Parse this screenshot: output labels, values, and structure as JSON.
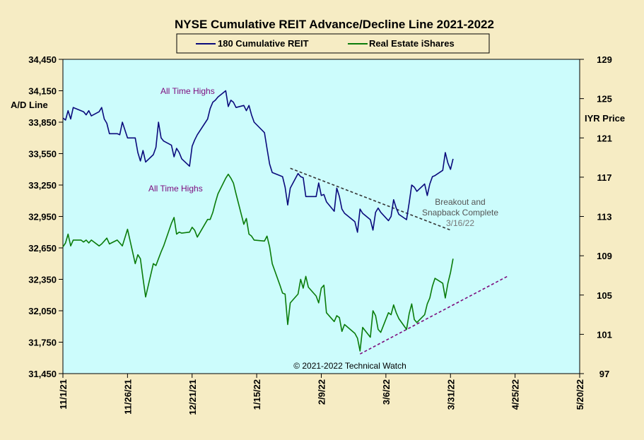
{
  "chart_data": {
    "type": "line",
    "title": "NYSE Cumulative  REIT Advance/Decline  Line 2021-2022",
    "ylabel_left": "A/D Line",
    "ylabel_right": "IYR Price",
    "left_axis": {
      "min": 31450,
      "max": 34450,
      "ticks": [
        "34,450",
        "34,150",
        "33,850",
        "33,550",
        "33,250",
        "32,950",
        "32,650",
        "32,350",
        "32,050",
        "31,750",
        "31,450"
      ]
    },
    "right_axis": {
      "min": 97,
      "max": 129,
      "ticks": [
        "129",
        "125",
        "121",
        "117",
        "113",
        "109",
        "105",
        "101",
        "97"
      ]
    },
    "x_axis": {
      "start": "2021-11-01",
      "end": "2022-05-20",
      "ticks": [
        "11/1/21",
        "11/26/21",
        "12/21/21",
        "1/15/22",
        "2/9/22",
        "3/6/22",
        "3/31/22",
        "4/25/22",
        "5/20/22"
      ]
    },
    "legend": {
      "placement": "top",
      "entries": [
        "180 Cumulative REIT",
        "Real Estate iShares"
      ]
    },
    "colors": {
      "plot_bg": "#ccfcfc",
      "page_bg": "#f6ecc4",
      "ad_line": "#0a0a7c",
      "iyr": "#0a7c0a",
      "annot_purple": "#7c0a7c",
      "annot_gray": "#555555"
    },
    "series": [
      {
        "name": "180 Cumulative REIT",
        "axis": "left",
        "points": [
          [
            "2021-11-01",
            33890
          ],
          [
            "2021-11-02",
            33870
          ],
          [
            "2021-11-03",
            33960
          ],
          [
            "2021-11-04",
            33880
          ],
          [
            "2021-11-05",
            33990
          ],
          [
            "2021-11-08",
            33960
          ],
          [
            "2021-11-09",
            33950
          ],
          [
            "2021-11-10",
            33920
          ],
          [
            "2021-11-11",
            33960
          ],
          [
            "2021-11-12",
            33910
          ],
          [
            "2021-11-15",
            33950
          ],
          [
            "2021-11-16",
            33990
          ],
          [
            "2021-11-17",
            33880
          ],
          [
            "2021-11-18",
            33840
          ],
          [
            "2021-11-19",
            33740
          ],
          [
            "2021-11-22",
            33740
          ],
          [
            "2021-11-23",
            33730
          ],
          [
            "2021-11-24",
            33850
          ],
          [
            "2021-11-26",
            33700
          ],
          [
            "2021-11-29",
            33700
          ],
          [
            "2021-11-30",
            33560
          ],
          [
            "2021-12-01",
            33480
          ],
          [
            "2021-12-02",
            33580
          ],
          [
            "2021-12-03",
            33470
          ],
          [
            "2021-12-06",
            33540
          ],
          [
            "2021-12-07",
            33610
          ],
          [
            "2021-12-08",
            33850
          ],
          [
            "2021-12-09",
            33700
          ],
          [
            "2021-12-10",
            33670
          ],
          [
            "2021-12-13",
            33630
          ],
          [
            "2021-12-14",
            33520
          ],
          [
            "2021-12-15",
            33600
          ],
          [
            "2021-12-16",
            33560
          ],
          [
            "2021-12-17",
            33500
          ],
          [
            "2021-12-20",
            33430
          ],
          [
            "2021-12-21",
            33620
          ],
          [
            "2021-12-22",
            33680
          ],
          [
            "2021-12-23",
            33730
          ],
          [
            "2021-12-27",
            33880
          ],
          [
            "2021-12-28",
            33980
          ],
          [
            "2021-12-29",
            34040
          ],
          [
            "2021-12-30",
            34060
          ],
          [
            "2021-12-31",
            34090
          ],
          [
            "2022-01-03",
            34150
          ],
          [
            "2022-01-04",
            34000
          ],
          [
            "2022-01-05",
            34060
          ],
          [
            "2022-01-06",
            34040
          ],
          [
            "2022-01-07",
            33990
          ],
          [
            "2022-01-10",
            34010
          ],
          [
            "2022-01-11",
            33960
          ],
          [
            "2022-01-12",
            34010
          ],
          [
            "2022-01-13",
            33920
          ],
          [
            "2022-01-14",
            33850
          ],
          [
            "2022-01-18",
            33750
          ],
          [
            "2022-01-19",
            33600
          ],
          [
            "2022-01-20",
            33450
          ],
          [
            "2022-01-21",
            33370
          ],
          [
            "2022-01-24",
            33340
          ],
          [
            "2022-01-25",
            33330
          ],
          [
            "2022-01-26",
            33230
          ],
          [
            "2022-01-27",
            33060
          ],
          [
            "2022-01-28",
            33220
          ],
          [
            "2022-01-31",
            33360
          ],
          [
            "2022-02-01",
            33330
          ],
          [
            "2022-02-02",
            33320
          ],
          [
            "2022-02-03",
            33140
          ],
          [
            "2022-02-04",
            33140
          ],
          [
            "2022-02-07",
            33140
          ],
          [
            "2022-02-08",
            33270
          ],
          [
            "2022-02-09",
            33150
          ],
          [
            "2022-02-10",
            33160
          ],
          [
            "2022-02-11",
            33090
          ],
          [
            "2022-02-14",
            33000
          ],
          [
            "2022-02-15",
            33220
          ],
          [
            "2022-02-16",
            33140
          ],
          [
            "2022-02-17",
            33020
          ],
          [
            "2022-02-18",
            32980
          ],
          [
            "2022-02-22",
            32900
          ],
          [
            "2022-02-23",
            32800
          ],
          [
            "2022-02-24",
            33020
          ],
          [
            "2022-02-25",
            32980
          ],
          [
            "2022-02-28",
            32920
          ],
          [
            "2022-03-01",
            32820
          ],
          [
            "2022-03-02",
            32990
          ],
          [
            "2022-03-03",
            33030
          ],
          [
            "2022-03-04",
            32990
          ],
          [
            "2022-03-07",
            32910
          ],
          [
            "2022-03-08",
            32950
          ],
          [
            "2022-03-09",
            33110
          ],
          [
            "2022-03-10",
            33030
          ],
          [
            "2022-03-11",
            32970
          ],
          [
            "2022-03-14",
            32920
          ],
          [
            "2022-03-15",
            33080
          ],
          [
            "2022-03-16",
            33250
          ],
          [
            "2022-03-17",
            33230
          ],
          [
            "2022-03-18",
            33190
          ],
          [
            "2022-03-21",
            33260
          ],
          [
            "2022-03-22",
            33150
          ],
          [
            "2022-03-23",
            33260
          ],
          [
            "2022-03-24",
            33330
          ],
          [
            "2022-03-25",
            33340
          ],
          [
            "2022-03-28",
            33390
          ],
          [
            "2022-03-29",
            33560
          ],
          [
            "2022-03-30",
            33460
          ],
          [
            "2022-03-31",
            33400
          ],
          [
            "2022-04-01",
            33500
          ]
        ]
      },
      {
        "name": "Real Estate iShares",
        "axis": "right",
        "points": [
          [
            "2021-11-01",
            109.9
          ],
          [
            "2021-11-02",
            110.3
          ],
          [
            "2021-11-03",
            111.2
          ],
          [
            "2021-11-04",
            110.0
          ],
          [
            "2021-11-05",
            110.6
          ],
          [
            "2021-11-08",
            110.6
          ],
          [
            "2021-11-09",
            110.4
          ],
          [
            "2021-11-10",
            110.6
          ],
          [
            "2021-11-11",
            110.3
          ],
          [
            "2021-11-12",
            110.6
          ],
          [
            "2021-11-15",
            110.0
          ],
          [
            "2021-11-16",
            110.2
          ],
          [
            "2021-11-17",
            110.5
          ],
          [
            "2021-11-18",
            110.8
          ],
          [
            "2021-11-19",
            110.2
          ],
          [
            "2021-11-22",
            110.6
          ],
          [
            "2021-11-23",
            110.3
          ],
          [
            "2021-11-24",
            110.0
          ],
          [
            "2021-11-26",
            111.7
          ],
          [
            "2021-11-29",
            108.2
          ],
          [
            "2021-11-30",
            109.1
          ],
          [
            "2021-12-01",
            108.7
          ],
          [
            "2021-12-02",
            106.7
          ],
          [
            "2021-12-03",
            104.8
          ],
          [
            "2021-12-06",
            108.2
          ],
          [
            "2021-12-07",
            108.0
          ],
          [
            "2021-12-08",
            108.7
          ],
          [
            "2021-12-09",
            109.4
          ],
          [
            "2021-12-10",
            110.0
          ],
          [
            "2021-12-13",
            112.3
          ],
          [
            "2021-12-14",
            112.9
          ],
          [
            "2021-12-15",
            111.2
          ],
          [
            "2021-12-16",
            111.4
          ],
          [
            "2021-12-17",
            111.3
          ],
          [
            "2021-12-20",
            111.4
          ],
          [
            "2021-12-21",
            111.9
          ],
          [
            "2021-12-22",
            111.6
          ],
          [
            "2021-12-23",
            110.9
          ],
          [
            "2021-12-27",
            112.7
          ],
          [
            "2021-12-28",
            112.7
          ],
          [
            "2021-12-29",
            113.4
          ],
          [
            "2021-12-30",
            114.4
          ],
          [
            "2021-12-31",
            115.3
          ],
          [
            "2022-01-03",
            116.9
          ],
          [
            "2022-01-04",
            117.3
          ],
          [
            "2022-01-05",
            116.9
          ],
          [
            "2022-01-06",
            116.4
          ],
          [
            "2022-01-07",
            115.3
          ],
          [
            "2022-01-10",
            112.2
          ],
          [
            "2022-01-11",
            112.8
          ],
          [
            "2022-01-12",
            111.2
          ],
          [
            "2022-01-13",
            111.0
          ],
          [
            "2022-01-14",
            110.6
          ],
          [
            "2022-01-18",
            110.5
          ],
          [
            "2022-01-19",
            111.0
          ],
          [
            "2022-01-20",
            109.9
          ],
          [
            "2022-01-21",
            108.2
          ],
          [
            "2022-01-24",
            106.0
          ],
          [
            "2022-01-25",
            105.2
          ],
          [
            "2022-01-26",
            105.1
          ],
          [
            "2022-01-27",
            102.0
          ],
          [
            "2022-01-28",
            104.2
          ],
          [
            "2022-01-31",
            105.1
          ],
          [
            "2022-02-01",
            106.6
          ],
          [
            "2022-02-02",
            105.7
          ],
          [
            "2022-02-03",
            106.9
          ],
          [
            "2022-02-04",
            105.8
          ],
          [
            "2022-02-07",
            104.9
          ],
          [
            "2022-02-08",
            104.2
          ],
          [
            "2022-02-09",
            105.7
          ],
          [
            "2022-02-10",
            106.0
          ],
          [
            "2022-02-11",
            103.2
          ],
          [
            "2022-02-14",
            102.3
          ],
          [
            "2022-02-15",
            102.9
          ],
          [
            "2022-02-16",
            102.7
          ],
          [
            "2022-02-17",
            101.3
          ],
          [
            "2022-02-18",
            102.0
          ],
          [
            "2022-02-22",
            101.1
          ],
          [
            "2022-02-23",
            100.6
          ],
          [
            "2022-02-24",
            99.3
          ],
          [
            "2022-02-25",
            101.7
          ],
          [
            "2022-02-28",
            100.7
          ],
          [
            "2022-03-01",
            103.4
          ],
          [
            "2022-03-02",
            102.9
          ],
          [
            "2022-03-03",
            101.5
          ],
          [
            "2022-03-04",
            101.2
          ],
          [
            "2022-03-07",
            103.2
          ],
          [
            "2022-03-08",
            103.0
          ],
          [
            "2022-03-09",
            104.0
          ],
          [
            "2022-03-10",
            103.2
          ],
          [
            "2022-03-11",
            102.6
          ],
          [
            "2022-03-14",
            101.5
          ],
          [
            "2022-03-15",
            103.1
          ],
          [
            "2022-03-16",
            104.1
          ],
          [
            "2022-03-17",
            102.5
          ],
          [
            "2022-03-18",
            102.2
          ],
          [
            "2022-03-21",
            103.0
          ],
          [
            "2022-03-22",
            104.1
          ],
          [
            "2022-03-23",
            104.7
          ],
          [
            "2022-03-24",
            105.9
          ],
          [
            "2022-03-25",
            106.7
          ],
          [
            "2022-03-28",
            106.2
          ],
          [
            "2022-03-29",
            104.7
          ],
          [
            "2022-03-30",
            106.2
          ],
          [
            "2022-03-31",
            107.3
          ],
          [
            "2022-04-01",
            108.7
          ]
        ]
      }
    ],
    "trendlines": [
      {
        "axis": "left",
        "style": "dashed",
        "color": "#333333",
        "from": [
          "2022-01-28",
          33410
        ],
        "to": [
          "2022-03-31",
          32820
        ]
      },
      {
        "axis": "right",
        "style": "dashed",
        "color": "#7c0a7c",
        "from": [
          "2022-02-24",
          99.0
        ],
        "to": [
          "2022-04-22",
          106.9
        ]
      }
    ],
    "annotations": [
      {
        "text": "All Time Highs",
        "color": "#7c0a7c"
      },
      {
        "text": "All Time  Highs",
        "color": "#7c0a7c"
      },
      {
        "text": "Breakout and",
        "color": "#555555"
      },
      {
        "text": "Snapback Complete",
        "color": "#555555"
      },
      {
        "text": "3/16/22",
        "color": "#777777"
      },
      {
        "text": "© 2021-2022  Technical  Watch",
        "color": "#000000"
      }
    ]
  }
}
